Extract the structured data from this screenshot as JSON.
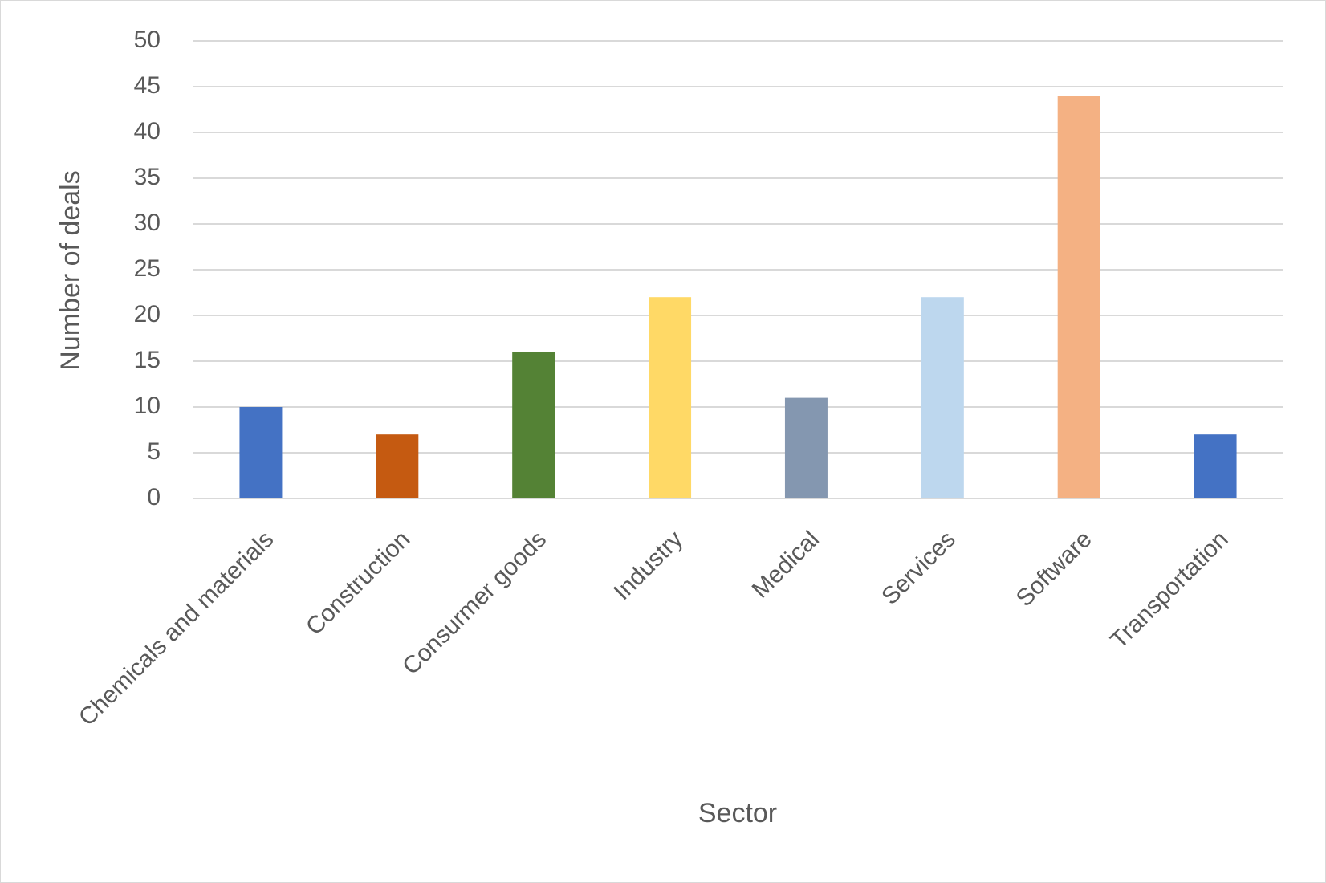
{
  "chart_data": {
    "type": "bar",
    "x_label": "Sector",
    "y_label": "Number of deals",
    "categories": [
      "Chemicals and materials",
      "Construction",
      "Consurmer goods",
      "Industry",
      "Medical",
      "Services",
      "Software",
      "Transportation"
    ],
    "values": [
      10,
      7,
      16,
      22,
      11,
      22,
      44,
      7
    ],
    "colors": [
      "#4472c4",
      "#c55a11",
      "#548235",
      "#ffd966",
      "#8497b0",
      "#bdd7ee",
      "#f4b183",
      "#4472c4"
    ],
    "ylim": [
      0,
      50
    ],
    "yticks": [
      0,
      5,
      10,
      15,
      20,
      25,
      30,
      35,
      40,
      45,
      50
    ],
    "grid": true
  }
}
